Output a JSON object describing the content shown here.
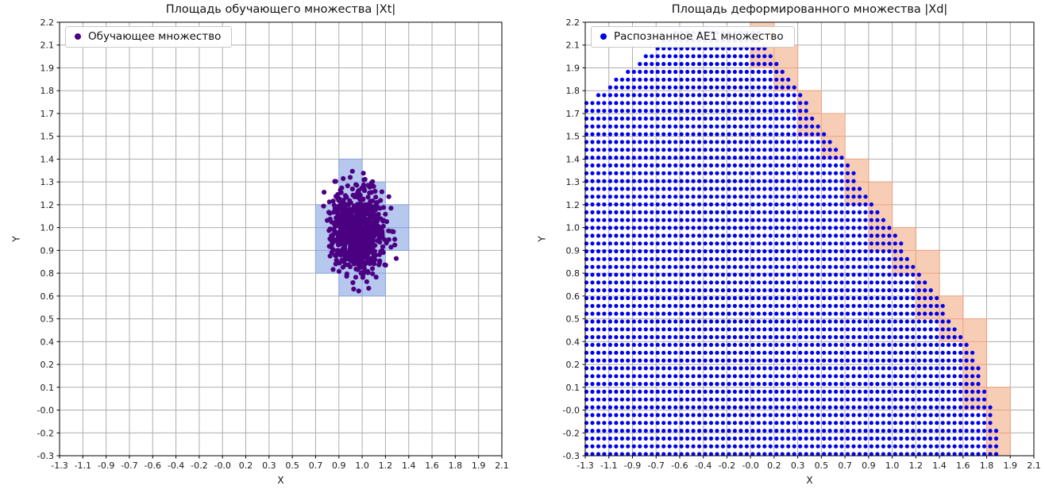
{
  "figure": {
    "background_color": "#ffffff"
  },
  "chart_data": [
    {
      "type": "scatter",
      "title": "Площадь обучающего множества |Xt|",
      "xlabel": "X",
      "ylabel": "Y",
      "legend_label": "Обучающее множество",
      "legend_marker_color": "#4B0082",
      "legend_position": "upper-left",
      "x_range": [
        -1.3,
        2.1
      ],
      "y_range": [
        -0.3,
        2.2
      ],
      "x_tick_labels": [
        "-1.3",
        "-1.1",
        "-0.9",
        "-0.7",
        "-0.6",
        "-0.4",
        "-0.2",
        "-0.0",
        "0.2",
        "0.3",
        "0.5",
        "0.7",
        "0.9",
        "1.0",
        "1.2",
        "1.4",
        "1.6",
        "1.8",
        "1.9",
        "2.1"
      ],
      "y_tick_labels": [
        "-0.3",
        "-0.2",
        "-0.0",
        "0.1",
        "0.2",
        "0.4",
        "0.5",
        "0.6",
        "0.8",
        "0.9",
        "1.0",
        "1.2",
        "1.3",
        "1.4",
        "1.5",
        "1.7",
        "1.8",
        "1.9",
        "2.1",
        "2.2"
      ],
      "grid": true,
      "grid_color": "#adadad",
      "point_color": "#4B0082",
      "scatter": {
        "distribution": "gaussian",
        "center": [
          0.99,
          1.0
        ],
        "std": [
          0.1,
          0.12
        ],
        "count": 800,
        "seed": 7,
        "radius": 3.1
      },
      "highlight_cells": {
        "fill": "#b7c8ef",
        "stroke": "#8da4dc",
        "cells": [
          [
            11,
            8
          ],
          [
            11,
            9
          ],
          [
            11,
            10
          ],
          [
            12,
            7
          ],
          [
            12,
            8
          ],
          [
            12,
            9
          ],
          [
            12,
            10
          ],
          [
            12,
            11
          ],
          [
            12,
            12
          ],
          [
            13,
            7
          ],
          [
            13,
            8
          ],
          [
            13,
            9
          ],
          [
            13,
            10
          ],
          [
            13,
            11
          ],
          [
            14,
            9
          ],
          [
            14,
            10
          ]
        ]
      }
    },
    {
      "type": "scatter",
      "title": "Площадь деформированного множества |Xd|",
      "xlabel": "X",
      "ylabel": "Y",
      "legend_label": "Распознанное AE1 множество",
      "legend_marker_color": "#0000EE",
      "legend_position": "upper-left",
      "x_range": [
        -1.3,
        2.1
      ],
      "y_range": [
        -0.3,
        2.2
      ],
      "x_tick_labels": [
        "-1.3",
        "-1.1",
        "-0.9",
        "-0.7",
        "-0.6",
        "-0.4",
        "-0.2",
        "-0.0",
        "0.2",
        "0.3",
        "0.5",
        "0.7",
        "0.9",
        "1.0",
        "1.2",
        "1.4",
        "1.6",
        "1.8",
        "1.9",
        "2.1"
      ],
      "y_tick_labels": [
        "-0.3",
        "-0.2",
        "-0.0",
        "0.1",
        "0.2",
        "0.4",
        "0.5",
        "0.6",
        "0.8",
        "0.9",
        "1.0",
        "1.2",
        "1.3",
        "1.4",
        "1.5",
        "1.7",
        "1.8",
        "1.9",
        "2.1",
        "2.2"
      ],
      "grid": true,
      "grid_color": "#adadad",
      "point_color": "#0000EE",
      "dot_grid": {
        "spacing": 0.045,
        "radius": 2.6
      },
      "region": {
        "polygon": [
          [
            -1.3,
            -0.3
          ],
          [
            -1.3,
            1.73
          ],
          [
            -0.6,
            2.16
          ],
          [
            0.0,
            2.16
          ],
          [
            1.62,
            0.33
          ],
          [
            1.8,
            -0.05
          ],
          [
            1.84,
            -0.3
          ]
        ],
        "cell_fill": "#f8cdb6",
        "cell_stroke": "#eaa584",
        "partial_cells_min_x": 0.0
      }
    }
  ]
}
